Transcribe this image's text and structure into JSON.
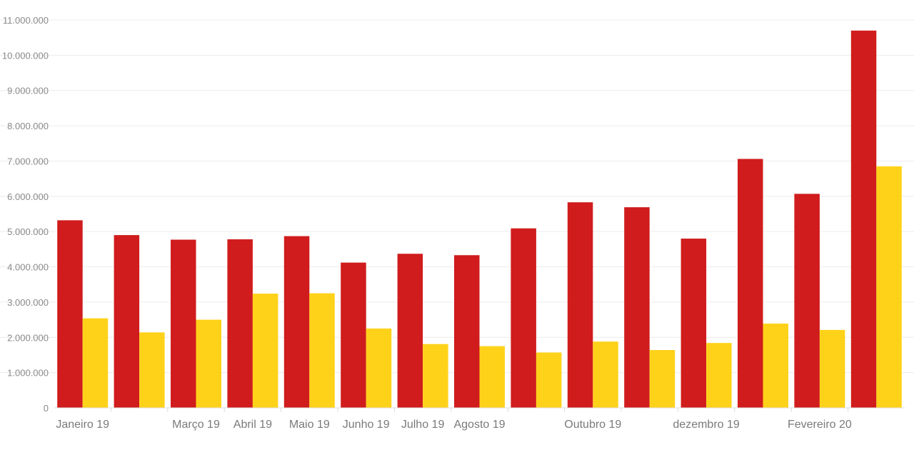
{
  "chart_data": {
    "type": "bar",
    "categories": [
      "Janeiro 19",
      "",
      "Março 19",
      "Abril 19",
      "Maio 19",
      "Junho 19",
      "Julho 19",
      "Agosto 19",
      "",
      "Outubro 19",
      "",
      "dezembro 19",
      "",
      "Fevereiro 20",
      ""
    ],
    "series": [
      {
        "color": "#d01c1c",
        "values": [
          5320000,
          4900000,
          4770000,
          4780000,
          4870000,
          4120000,
          4370000,
          4330000,
          5090000,
          5830000,
          5690000,
          4800000,
          7060000,
          6070000,
          10700000
        ]
      },
      {
        "color": "#ffd21a",
        "values": [
          2540000,
          2140000,
          2500000,
          3240000,
          3250000,
          2250000,
          1810000,
          1750000,
          1570000,
          1880000,
          1640000,
          1840000,
          2390000,
          2210000,
          6850000
        ]
      }
    ],
    "yticks": [
      "0",
      "1.000.000",
      "2.000.000",
      "3.000.000",
      "4.000.000",
      "5.000.000",
      "6.000.000",
      "7.000.000",
      "8.000.000",
      "9.000.000",
      "10.000.000",
      "11.000.000"
    ],
    "ylim": [
      0,
      11000000
    ],
    "grid": true,
    "title": "",
    "xlabel": "",
    "ylabel": ""
  }
}
